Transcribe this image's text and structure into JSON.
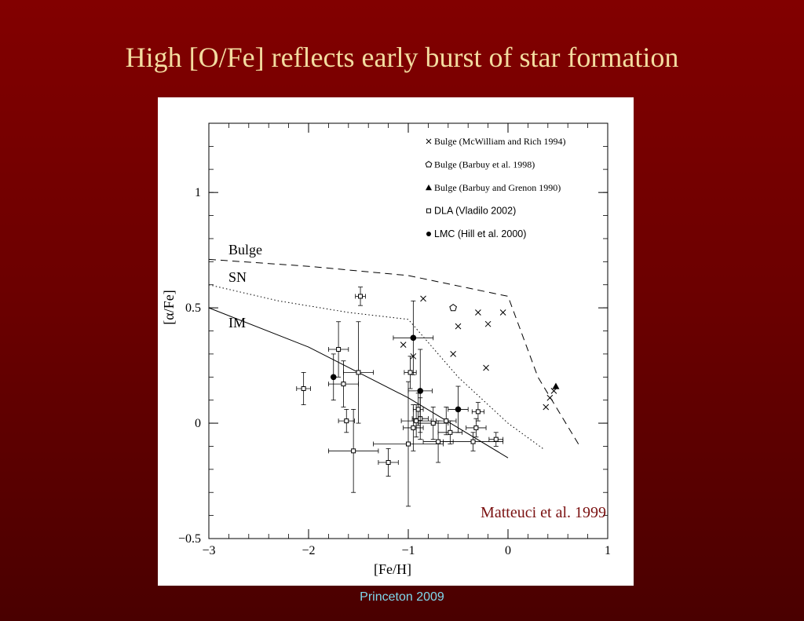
{
  "slide": {
    "title": "High [O/Fe] reflects early burst of star formation",
    "footer": "Princeton 2009"
  },
  "chart_data": {
    "type": "scatter",
    "xlabel": "[Fe/H]",
    "ylabel": "[α/Fe]",
    "xlim": [
      -3,
      1
    ],
    "ylim": [
      -0.5,
      1.3
    ],
    "x_ticks": [
      -3,
      -2,
      -1,
      0,
      1
    ],
    "x_tick_labels": [
      "−3",
      "−2",
      "−1",
      "0",
      "1"
    ],
    "y_ticks": [
      -0.5,
      0,
      0.5,
      1
    ],
    "y_tick_labels": [
      "−0.5",
      "0",
      "0.5",
      "1"
    ],
    "legend_position": "top-right",
    "credit": "Matteuci et al. 1999",
    "curves": [
      {
        "label": "Bulge",
        "style": "dashed",
        "x": [
          -3,
          -2,
          -1,
          0,
          0.3,
          0.72
        ],
        "y": [
          0.71,
          0.68,
          0.64,
          0.55,
          0.2,
          -0.1
        ]
      },
      {
        "label": "SN",
        "style": "dotted",
        "x": [
          -3,
          -2.3,
          -1.6,
          -1,
          -0.5,
          0,
          0.35
        ],
        "y": [
          0.6,
          0.53,
          0.48,
          0.45,
          0.2,
          0,
          -0.11
        ]
      },
      {
        "label": "IM",
        "style": "solid",
        "x": [
          -3,
          -2,
          -1,
          0
        ],
        "y": [
          0.5,
          0.33,
          0.11,
          -0.15
        ]
      }
    ],
    "series": [
      {
        "name": "Bulge (McWilliam and Rich 1994)",
        "marker": "cross",
        "x": [
          -0.85,
          -0.5,
          -0.3,
          -0.2,
          -0.05,
          -0.55,
          -0.95,
          -1.05,
          -0.22,
          0.38,
          0.42,
          0.46
        ],
        "y": [
          0.54,
          0.42,
          0.48,
          0.43,
          0.48,
          0.3,
          0.29,
          0.34,
          0.24,
          0.07,
          0.11,
          0.14
        ]
      },
      {
        "name": "Bulge (Barbuy et al. 1998)",
        "marker": "pentagon",
        "x": [
          -0.55
        ],
        "y": [
          0.5
        ]
      },
      {
        "name": "Bulge (Barbuy and Grenon 1990)",
        "marker": "triangle",
        "x": [
          0.48
        ],
        "y": [
          0.16
        ]
      },
      {
        "name": "DLA (Vladilo 2002)",
        "marker": "square",
        "x": [
          -2.05,
          -1.7,
          -1.65,
          -1.62,
          -1.55,
          -1.5,
          -1.48,
          -1.2,
          -1.0,
          -0.98,
          -0.95,
          -0.92,
          -0.9,
          -0.88,
          -0.75,
          -0.7,
          -0.62,
          -0.58,
          -0.35,
          -0.32,
          -0.3,
          -0.12
        ],
        "y": [
          0.15,
          0.32,
          0.17,
          0.01,
          -0.12,
          0.22,
          0.55,
          -0.17,
          -0.09,
          0.22,
          -0.02,
          0.01,
          0.06,
          0.02,
          0.0,
          -0.08,
          0.01,
          -0.04,
          -0.08,
          -0.02,
          0.05,
          -0.07
        ],
        "x_err": [
          0.07,
          0.1,
          0.15,
          0.08,
          0.25,
          0.15,
          0.05,
          0.1,
          0.35,
          0.06,
          0.1,
          0.15,
          0.05,
          0.08,
          0.15,
          0.15,
          0.1,
          0.12,
          0.3,
          0.1,
          0.06,
          0.07
        ],
        "y_err": [
          0.07,
          0.12,
          0.1,
          0.05,
          0.18,
          0.22,
          0.04,
          0.06,
          0.27,
          0.07,
          0.1,
          0.07,
          0.07,
          0.09,
          0.07,
          0.09,
          0.06,
          0.05,
          0.04,
          0.04,
          0.04,
          0.03
        ]
      },
      {
        "name": "LMC (Hill et al. 2000)",
        "marker": "filled-circle",
        "x": [
          -1.75,
          -0.95,
          -0.88,
          -0.5
        ],
        "y": [
          0.2,
          0.37,
          0.14,
          0.06
        ],
        "x_err": [
          0.0,
          0.2,
          0.12,
          0.1
        ],
        "y_err": [
          0.1,
          0.16,
          0.18,
          0.1
        ]
      }
    ]
  }
}
